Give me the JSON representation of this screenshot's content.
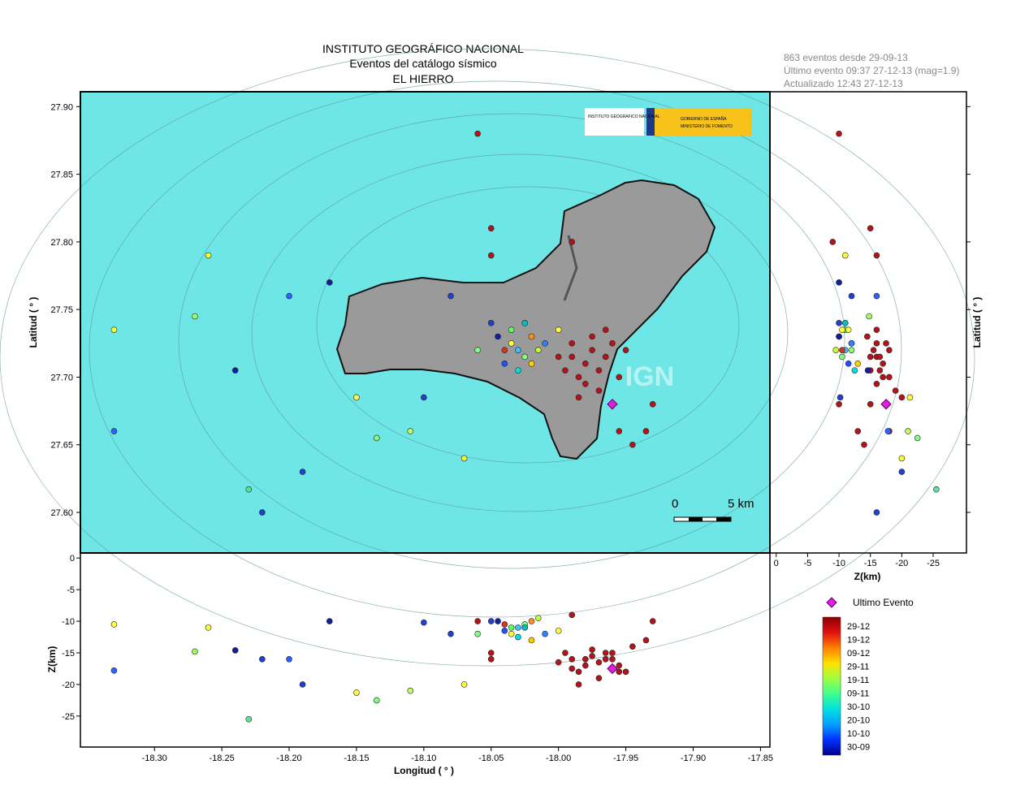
{
  "header": {
    "lines": [
      "INSTITUTO GEOGRÁFICO NACIONAL",
      "Eventos del catálogo sísmico",
      "EL HIERRO"
    ]
  },
  "info": [
    "863 eventos desde 29-09-13",
    "Último evento 09:37 27-12-13  (mag=1.9)",
    "Actualizado   12:43  27-12-13"
  ],
  "logos": [
    "INSTITUTO GEOGRAFICO NACIONAL",
    "GOBIERNO DE ESPAÑA",
    "MINISTERIO DE FOMENTO"
  ],
  "watermark": "IGN",
  "scale_bar": {
    "labels": [
      "0",
      "5 km"
    ]
  },
  "map": {
    "xlim": [
      -18.355,
      -17.843
    ],
    "ylim": [
      27.57,
      27.911
    ],
    "xticks": [
      {
        "value": -18.3,
        "label": "-18.30"
      },
      {
        "value": -18.25,
        "label": "-18.25"
      },
      {
        "value": -18.2,
        "label": "-18.20"
      },
      {
        "value": -18.15,
        "label": "-18.15"
      },
      {
        "value": -18.1,
        "label": "-18.10"
      },
      {
        "value": -18.05,
        "label": "-18.05"
      },
      {
        "value": -18.0,
        "label": "-18.00"
      },
      {
        "value": -17.95,
        "label": "-17.95"
      },
      {
        "value": -17.9,
        "label": "-17.90"
      },
      {
        "value": -17.85,
        "label": "-17.85"
      }
    ],
    "yticks": [
      {
        "value": 27.6,
        "label": "27.60"
      },
      {
        "value": 27.65,
        "label": "27.65"
      },
      {
        "value": 27.7,
        "label": "27.70"
      },
      {
        "value": 27.75,
        "label": "27.75"
      },
      {
        "value": 27.8,
        "label": "27.80"
      },
      {
        "value": 27.85,
        "label": "27.85"
      },
      {
        "value": 27.9,
        "label": "27.90"
      }
    ],
    "xlabel": "Longitud ( ° )",
    "ylabel": "Latitud ( ° )"
  },
  "depth_lon": {
    "zlim": [
      0.8,
      -29.9
    ],
    "zticks": [
      0,
      -5,
      -10,
      -15,
      -20,
      -25
    ],
    "ylabel": "Z(km)"
  },
  "depth_lat": {
    "zlim": [
      1.0,
      -30.3
    ],
    "zticks": [
      0,
      -5,
      -10,
      -15,
      -20,
      -25
    ],
    "xlabel": "Z(km)",
    "ylabel": "Latitud ( ° )"
  },
  "legend": {
    "last_event": "Ultimo Evento",
    "date_labels": [
      "29-12",
      "19-12",
      "09-12",
      "29-11",
      "19-11",
      "09-11",
      "30-10",
      "20-10",
      "10-10",
      "30-09"
    ],
    "colors": [
      "#8b0000",
      "#e01010",
      "#ff8000",
      "#ffe000",
      "#a0ff40",
      "#40ff90",
      "#00e0e0",
      "#00a0ff",
      "#0030ff",
      "#00008b"
    ]
  },
  "last_event": {
    "lon": -17.96,
    "lat": 27.68,
    "z": -17.5,
    "color": "#e020e0"
  },
  "events": [
    {
      "lon": -17.99,
      "lat": 27.715,
      "z": -16,
      "color": "#b3141a"
    },
    {
      "lon": -17.98,
      "lat": 27.71,
      "z": -17,
      "color": "#b3141a"
    },
    {
      "lon": -17.975,
      "lat": 27.72,
      "z": -15.5,
      "color": "#b3141a"
    },
    {
      "lon": -17.97,
      "lat": 27.705,
      "z": -16.5,
      "color": "#b3141a"
    },
    {
      "lon": -17.985,
      "lat": 27.7,
      "z": -18,
      "color": "#b3141a"
    },
    {
      "lon": -17.965,
      "lat": 27.715,
      "z": -15,
      "color": "#b3141a"
    },
    {
      "lon": -17.96,
      "lat": 27.725,
      "z": -16,
      "color": "#b3141a"
    },
    {
      "lon": -17.99,
      "lat": 27.725,
      "z": -17.5,
      "color": "#b3141a"
    },
    {
      "lon": -17.98,
      "lat": 27.695,
      "z": -16,
      "color": "#b3141a"
    },
    {
      "lon": -17.97,
      "lat": 27.69,
      "z": -19,
      "color": "#b3141a"
    },
    {
      "lon": -17.955,
      "lat": 27.7,
      "z": -17,
      "color": "#b3141a"
    },
    {
      "lon": -17.995,
      "lat": 27.705,
      "z": -15,
      "color": "#b3141a"
    },
    {
      "lon": -17.975,
      "lat": 27.73,
      "z": -14.5,
      "color": "#b3141a"
    },
    {
      "lon": -17.965,
      "lat": 27.735,
      "z": -16,
      "color": "#b3141a"
    },
    {
      "lon": -17.95,
      "lat": 27.72,
      "z": -18,
      "color": "#b3141a"
    },
    {
      "lon": -18.0,
      "lat": 27.715,
      "z": -16.5,
      "color": "#b3141a"
    },
    {
      "lon": -17.985,
      "lat": 27.685,
      "z": -20,
      "color": "#b3141a"
    },
    {
      "lon": -17.96,
      "lat": 27.68,
      "z": -15,
      "color": "#b3141a"
    },
    {
      "lon": -17.945,
      "lat": 27.65,
      "z": -14,
      "color": "#b3141a"
    },
    {
      "lon": -17.955,
      "lat": 27.66,
      "z": -18,
      "color": "#b3141a"
    },
    {
      "lon": -17.99,
      "lat": 27.8,
      "z": -9,
      "color": "#b3141a"
    },
    {
      "lon": -17.93,
      "lat": 27.68,
      "z": -10,
      "color": "#b3141a"
    },
    {
      "lon": -18.05,
      "lat": 27.79,
      "z": -16,
      "color": "#b3141a"
    },
    {
      "lon": -18.05,
      "lat": 27.81,
      "z": -15,
      "color": "#b3141a"
    },
    {
      "lon": -17.935,
      "lat": 27.66,
      "z": -13,
      "color": "#b3141a"
    },
    {
      "lon": -18.03,
      "lat": 27.72,
      "z": -11,
      "color": "#40c0ff"
    },
    {
      "lon": -18.025,
      "lat": 27.715,
      "z": -10.5,
      "color": "#80ff80"
    },
    {
      "lon": -18.035,
      "lat": 27.725,
      "z": -12,
      "color": "#ffff40"
    },
    {
      "lon": -18.02,
      "lat": 27.73,
      "z": -10,
      "color": "#ff9020"
    },
    {
      "lon": -18.04,
      "lat": 27.71,
      "z": -11.5,
      "color": "#2050ff"
    },
    {
      "lon": -18.03,
      "lat": 27.705,
      "z": -12.5,
      "color": "#00e0e0"
    },
    {
      "lon": -18.015,
      "lat": 27.72,
      "z": -9.5,
      "color": "#c0ff40"
    },
    {
      "lon": -18.045,
      "lat": 27.73,
      "z": -10,
      "color": "#1020a0"
    },
    {
      "lon": -18.02,
      "lat": 27.71,
      "z": -13,
      "color": "#ffd000"
    },
    {
      "lon": -18.035,
      "lat": 27.735,
      "z": -11,
      "color": "#60ff60"
    },
    {
      "lon": -18.01,
      "lat": 27.725,
      "z": -12,
      "color": "#3080ff"
    },
    {
      "lon": -18.04,
      "lat": 27.72,
      "z": -10.5,
      "color": "#e03020"
    },
    {
      "lon": -18.025,
      "lat": 27.74,
      "z": -11,
      "color": "#00c0c0"
    },
    {
      "lon": -18.05,
      "lat": 27.74,
      "z": -10,
      "color": "#2040d0"
    },
    {
      "lon": -18.06,
      "lat": 27.72,
      "z": -12,
      "color": "#80ff80"
    },
    {
      "lon": -18.0,
      "lat": 27.735,
      "z": -11.5,
      "color": "#ffff40"
    },
    {
      "lon": -18.33,
      "lat": 27.735,
      "z": -10.5,
      "color": "#ffff40"
    },
    {
      "lon": -18.33,
      "lat": 27.66,
      "z": -17.8,
      "color": "#3060ff"
    },
    {
      "lon": -18.27,
      "lat": 27.745,
      "z": -14.8,
      "color": "#a0ff60"
    },
    {
      "lon": -18.24,
      "lat": 27.705,
      "z": -14.6,
      "color": "#1020a0"
    },
    {
      "lon": -18.23,
      "lat": 27.617,
      "z": -25.5,
      "color": "#60e0a0"
    },
    {
      "lon": -18.22,
      "lat": 27.6,
      "z": -16,
      "color": "#2040d0"
    },
    {
      "lon": -18.15,
      "lat": 27.685,
      "z": -21.3,
      "color": "#ffff40"
    },
    {
      "lon": -18.135,
      "lat": 27.655,
      "z": -22.5,
      "color": "#80ff80"
    },
    {
      "lon": -18.11,
      "lat": 27.66,
      "z": -21,
      "color": "#c0ff60"
    },
    {
      "lon": -18.1,
      "lat": 27.685,
      "z": -10.2,
      "color": "#2040d0"
    },
    {
      "lon": -18.07,
      "lat": 27.64,
      "z": -20,
      "color": "#ffff40"
    },
    {
      "lon": -18.06,
      "lat": 27.88,
      "z": -10,
      "color": "#b3141a"
    },
    {
      "lon": -18.19,
      "lat": 27.63,
      "z": -20,
      "color": "#2040d0"
    },
    {
      "lon": -18.2,
      "lat": 27.76,
      "z": -16,
      "color": "#3060ff"
    },
    {
      "lon": -18.26,
      "lat": 27.79,
      "z": -11,
      "color": "#ffff40"
    },
    {
      "lon": -18.17,
      "lat": 27.77,
      "z": -10,
      "color": "#1020a0"
    },
    {
      "lon": -18.08,
      "lat": 27.76,
      "z": -12,
      "color": "#2040d0"
    }
  ]
}
